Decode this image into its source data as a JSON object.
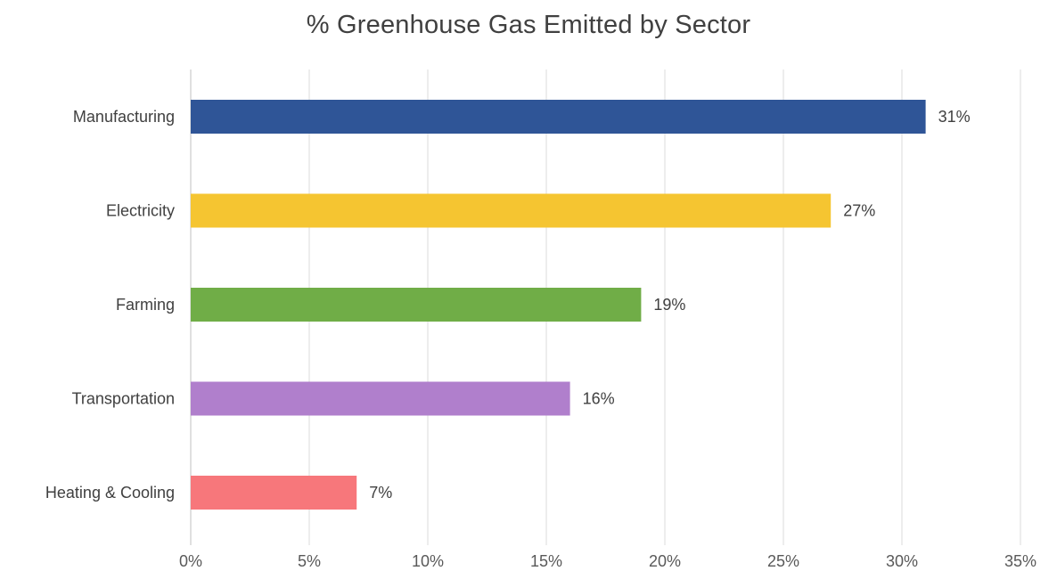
{
  "chart_data": {
    "type": "bar",
    "orientation": "horizontal",
    "title": "% Greenhouse Gas Emitted by Sector",
    "xlabel": "",
    "ylabel": "",
    "categories": [
      "Manufacturing",
      "Electricity",
      "Farming",
      "Transportation",
      "Heating & Cooling"
    ],
    "values": [
      31,
      27,
      19,
      16,
      7
    ],
    "data_labels": [
      "31%",
      "27%",
      "19%",
      "16%",
      "7%"
    ],
    "colors": [
      "#2F5597",
      "#F5C531",
      "#70AD47",
      "#B07FCC",
      "#F7777B"
    ],
    "xlim": [
      0,
      35
    ],
    "x_ticks": [
      0,
      5,
      10,
      15,
      20,
      25,
      30,
      35
    ],
    "x_tick_labels": [
      "0%",
      "5%",
      "10%",
      "15%",
      "20%",
      "25%",
      "30%",
      "35%"
    ],
    "grid": true,
    "legend": "none"
  }
}
